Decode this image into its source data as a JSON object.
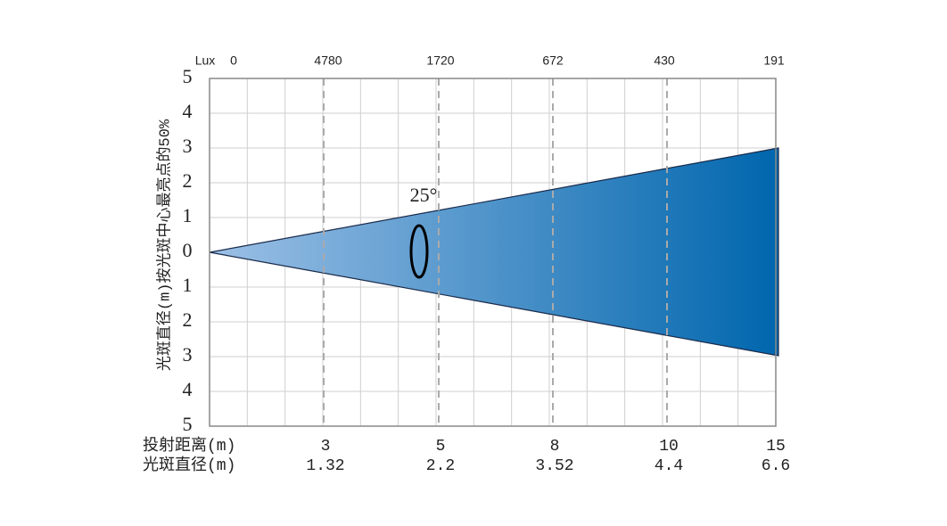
{
  "top_axis": {
    "unit": "Lux",
    "labels": [
      "0",
      "4780",
      "1720",
      "672",
      "430",
      "191"
    ]
  },
  "left_axis": {
    "title": "光斑直径(m)按光斑中心最亮点的50%",
    "labels": [
      "5",
      "4",
      "3",
      "2",
      "1",
      "0",
      "1",
      "2",
      "3",
      "4",
      "5"
    ]
  },
  "angle_label": "25°",
  "bottom_rows": [
    {
      "label": "投射距离(m)",
      "values": [
        "3",
        "5",
        "8",
        "10",
        "15"
      ]
    },
    {
      "label": "光斑直径(m)",
      "values": [
        "1.32",
        "2.2",
        "3.52",
        "4.4",
        "6.6"
      ]
    }
  ]
}
